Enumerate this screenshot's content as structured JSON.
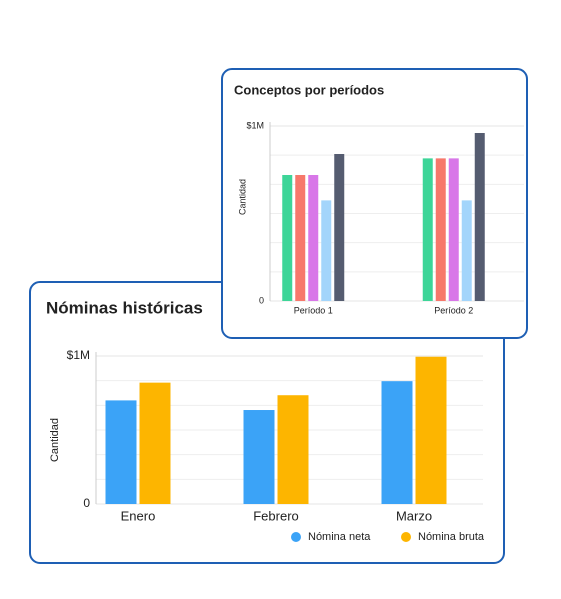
{
  "chart_data": [
    {
      "type": "bar",
      "title": "Nóminas históricas",
      "y_label": "Cantidad",
      "categories": [
        "Enero",
        "Febrero",
        "Marzo"
      ],
      "series": [
        {
          "name": "Nómina neta",
          "color": "#3ba3f7",
          "values": [
            700000,
            635000,
            830000
          ]
        },
        {
          "name": "Nómina bruta",
          "color": "#fdb500",
          "values": [
            820000,
            735000,
            995000
          ]
        }
      ],
      "ylim": [
        0,
        1000000
      ],
      "yticks": [
        0,
        {
          "value": 1000000,
          "label": "$1M"
        }
      ],
      "grid": true,
      "legend": "bottom-right"
    },
    {
      "type": "bar",
      "title": "Conceptos por períodos",
      "y_label": "Cantidad",
      "categories": [
        "Período 1",
        "Período 2"
      ],
      "series": [
        {
          "color": "#3dd598",
          "values": [
            720000,
            815000
          ]
        },
        {
          "color": "#f7786b",
          "values": [
            720000,
            815000
          ]
        },
        {
          "color": "#d877e8",
          "values": [
            720000,
            815000
          ]
        },
        {
          "color": "#a3d5fb",
          "values": [
            575000,
            575000
          ]
        },
        {
          "color": "#555c70",
          "values": [
            840000,
            960000
          ]
        }
      ],
      "ylim": [
        0,
        1000000
      ],
      "yticks": [
        0,
        {
          "value": 1000000,
          "label": "$1M"
        }
      ],
      "grid": true
    }
  ]
}
